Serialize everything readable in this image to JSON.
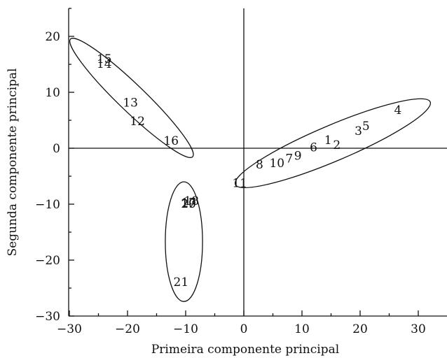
{
  "chart_data": {
    "type": "scatter",
    "title": "",
    "xlabel": "Primeira componente principal",
    "ylabel": "Segunda componente principal",
    "xlim": [
      -30,
      35
    ],
    "ylim": [
      -30,
      25
    ],
    "xticks": [
      -30,
      -20,
      -10,
      0,
      10,
      20,
      30
    ],
    "yticks": [
      -30,
      -20,
      -10,
      0,
      10,
      20
    ],
    "xtick_labels": [
      "−30",
      "−20",
      "−10",
      "0",
      "10",
      "20",
      "30"
    ],
    "ytick_labels": [
      "−30",
      "−20",
      "−10",
      "0",
      "10",
      "20"
    ],
    "reference_lines": {
      "x": 0,
      "y": 0
    },
    "grid": false,
    "points": [
      {
        "label": "1",
        "x": 14.5,
        "y": 1.5
      },
      {
        "label": "2",
        "x": 16.0,
        "y": 0.6
      },
      {
        "label": "3",
        "x": 19.7,
        "y": 3.1
      },
      {
        "label": "4",
        "x": 26.5,
        "y": 6.9
      },
      {
        "label": "5",
        "x": 21.0,
        "y": 4.0
      },
      {
        "label": "6",
        "x": 12.0,
        "y": 0.2
      },
      {
        "label": "7",
        "x": 7.8,
        "y": -1.8
      },
      {
        "label": "8",
        "x": 2.7,
        "y": -2.9
      },
      {
        "label": "9",
        "x": 9.3,
        "y": -1.3
      },
      {
        "label": "10",
        "x": 5.7,
        "y": -2.6
      },
      {
        "label": "11",
        "x": -0.7,
        "y": -6.2
      },
      {
        "label": "12",
        "x": -18.3,
        "y": 4.9
      },
      {
        "label": "13",
        "x": -19.5,
        "y": 8.2
      },
      {
        "label": "14",
        "x": -24.0,
        "y": 15.1
      },
      {
        "label": "15",
        "x": -24.0,
        "y": 16.0
      },
      {
        "label": "16",
        "x": -12.5,
        "y": 1.4
      },
      {
        "label": "17",
        "x": -9.5,
        "y": -9.7
      },
      {
        "label": "18",
        "x": -9.0,
        "y": -9.4
      },
      {
        "label": "19",
        "x": -9.5,
        "y": -9.9
      },
      {
        "label": "20",
        "x": -9.5,
        "y": -9.9
      },
      {
        "label": "21",
        "x": -10.8,
        "y": -23.9
      }
    ],
    "clusters": [
      {
        "cx": 15.3,
        "cy": 0.9,
        "rx": 18.2,
        "ry": 3.2,
        "angle_deg": 23
      },
      {
        "cx": -19.3,
        "cy": 9.0,
        "rx": 14.6,
        "ry": 2.4,
        "angle_deg": -44
      },
      {
        "cx": -10.3,
        "cy": -16.7,
        "rx": 3.2,
        "ry": 10.7,
        "angle_deg": 0
      }
    ]
  }
}
